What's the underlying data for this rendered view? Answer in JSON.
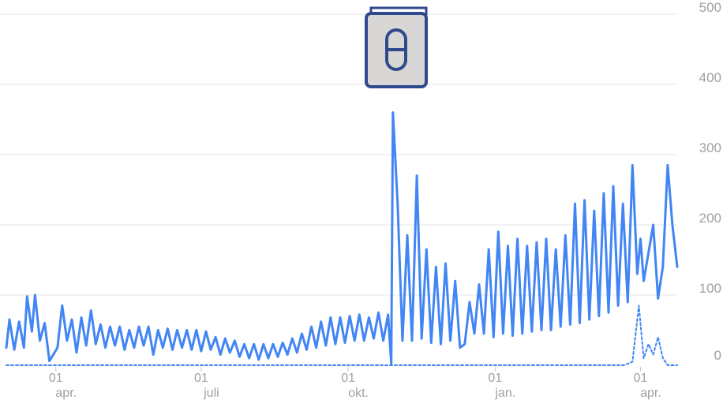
{
  "icon": {
    "name": "book-pill-icon",
    "frame_color": "#2f4a8c",
    "fill_color": "#d9d6d6"
  },
  "colors": {
    "line": "#4285f4",
    "grid": "#e6e6e6",
    "tick_text": "#a0a0a0"
  },
  "chart_data": {
    "type": "line",
    "title": "",
    "xlabel": "",
    "ylabel": "",
    "ylim": [
      0,
      500
    ],
    "yticks": [
      0,
      100,
      200,
      300,
      400,
      500
    ],
    "grid": true,
    "legend": "none",
    "xticks": [
      {
        "day": "01",
        "month": "apr.",
        "x": "2023-04-01"
      },
      {
        "day": "01",
        "month": "juli",
        "x": "2023-07-01"
      },
      {
        "day": "01",
        "month": "okt.",
        "x": "2023-10-01"
      },
      {
        "day": "01",
        "month": "jan.",
        "x": "2024-01-01"
      },
      {
        "day": "01",
        "month": "apr.",
        "x": "2024-04-01"
      }
    ],
    "x_range": [
      "2023-03-01",
      "2024-04-24"
    ],
    "series": [
      {
        "style": "solid",
        "points": [
          [
            "2023-03-01",
            25
          ],
          [
            "2023-03-03",
            65
          ],
          [
            "2023-03-06",
            22
          ],
          [
            "2023-03-09",
            62
          ],
          [
            "2023-03-12",
            25
          ],
          [
            "2023-03-14",
            98
          ],
          [
            "2023-03-17",
            48
          ],
          [
            "2023-03-19",
            100
          ],
          [
            "2023-03-22",
            35
          ],
          [
            "2023-03-25",
            60
          ],
          [
            "2023-03-28",
            6
          ],
          [
            "2023-04-02",
            25
          ],
          [
            "2023-04-05",
            85
          ],
          [
            "2023-04-08",
            35
          ],
          [
            "2023-04-11",
            65
          ],
          [
            "2023-04-14",
            18
          ],
          [
            "2023-04-17",
            68
          ],
          [
            "2023-04-20",
            28
          ],
          [
            "2023-04-23",
            78
          ],
          [
            "2023-04-26",
            30
          ],
          [
            "2023-04-29",
            58
          ],
          [
            "2023-05-02",
            25
          ],
          [
            "2023-05-05",
            55
          ],
          [
            "2023-05-08",
            28
          ],
          [
            "2023-05-11",
            55
          ],
          [
            "2023-05-14",
            22
          ],
          [
            "2023-05-17",
            50
          ],
          [
            "2023-05-20",
            25
          ],
          [
            "2023-05-23",
            55
          ],
          [
            "2023-05-26",
            28
          ],
          [
            "2023-05-29",
            55
          ],
          [
            "2023-06-01",
            15
          ],
          [
            "2023-06-04",
            50
          ],
          [
            "2023-06-07",
            25
          ],
          [
            "2023-06-10",
            52
          ],
          [
            "2023-06-13",
            22
          ],
          [
            "2023-06-16",
            50
          ],
          [
            "2023-06-19",
            25
          ],
          [
            "2023-06-22",
            50
          ],
          [
            "2023-06-25",
            22
          ],
          [
            "2023-06-28",
            50
          ],
          [
            "2023-07-01",
            20
          ],
          [
            "2023-07-04",
            48
          ],
          [
            "2023-07-07",
            22
          ],
          [
            "2023-07-10",
            40
          ],
          [
            "2023-07-13",
            15
          ],
          [
            "2023-07-16",
            38
          ],
          [
            "2023-07-19",
            18
          ],
          [
            "2023-07-22",
            35
          ],
          [
            "2023-07-25",
            12
          ],
          [
            "2023-07-28",
            30
          ],
          [
            "2023-07-31",
            10
          ],
          [
            "2023-08-03",
            30
          ],
          [
            "2023-08-06",
            8
          ],
          [
            "2023-08-09",
            30
          ],
          [
            "2023-08-12",
            10
          ],
          [
            "2023-08-15",
            30
          ],
          [
            "2023-08-18",
            12
          ],
          [
            "2023-08-21",
            32
          ],
          [
            "2023-08-24",
            15
          ],
          [
            "2023-08-27",
            38
          ],
          [
            "2023-08-30",
            18
          ],
          [
            "2023-09-02",
            45
          ],
          [
            "2023-09-05",
            22
          ],
          [
            "2023-09-08",
            55
          ],
          [
            "2023-09-11",
            25
          ],
          [
            "2023-09-14",
            62
          ],
          [
            "2023-09-17",
            28
          ],
          [
            "2023-09-20",
            68
          ],
          [
            "2023-09-23",
            30
          ],
          [
            "2023-09-26",
            68
          ],
          [
            "2023-09-29",
            32
          ],
          [
            "2023-10-02",
            70
          ],
          [
            "2023-10-05",
            35
          ],
          [
            "2023-10-08",
            72
          ],
          [
            "2023-10-11",
            35
          ],
          [
            "2023-10-14",
            68
          ],
          [
            "2023-10-17",
            38
          ],
          [
            "2023-10-20",
            75
          ],
          [
            "2023-10-23",
            35
          ],
          [
            "2023-10-26",
            72
          ],
          [
            "2023-10-28",
            2
          ],
          [
            "2023-10-29",
            360
          ],
          [
            "2023-11-01",
            230
          ],
          [
            "2023-11-04",
            35
          ],
          [
            "2023-11-07",
            185
          ],
          [
            "2023-11-10",
            35
          ],
          [
            "2023-11-13",
            270
          ],
          [
            "2023-11-16",
            38
          ],
          [
            "2023-11-19",
            165
          ],
          [
            "2023-11-22",
            32
          ],
          [
            "2023-11-25",
            140
          ],
          [
            "2023-11-28",
            30
          ],
          [
            "2023-12-01",
            145
          ],
          [
            "2023-12-04",
            35
          ],
          [
            "2023-12-07",
            120
          ],
          [
            "2023-12-10",
            25
          ],
          [
            "2023-12-13",
            30
          ],
          [
            "2023-12-16",
            90
          ],
          [
            "2023-12-19",
            45
          ],
          [
            "2023-12-22",
            115
          ],
          [
            "2023-12-25",
            45
          ],
          [
            "2023-12-28",
            165
          ],
          [
            "2023-12-31",
            40
          ],
          [
            "2024-01-03",
            190
          ],
          [
            "2024-01-06",
            45
          ],
          [
            "2024-01-09",
            170
          ],
          [
            "2024-01-12",
            42
          ],
          [
            "2024-01-15",
            180
          ],
          [
            "2024-01-18",
            45
          ],
          [
            "2024-01-21",
            170
          ],
          [
            "2024-01-24",
            48
          ],
          [
            "2024-01-27",
            175
          ],
          [
            "2024-01-30",
            50
          ],
          [
            "2024-02-02",
            180
          ],
          [
            "2024-02-05",
            50
          ],
          [
            "2024-02-08",
            165
          ],
          [
            "2024-02-11",
            55
          ],
          [
            "2024-02-14",
            185
          ],
          [
            "2024-02-17",
            58
          ],
          [
            "2024-02-20",
            230
          ],
          [
            "2024-02-23",
            60
          ],
          [
            "2024-02-26",
            235
          ],
          [
            "2024-02-29",
            65
          ],
          [
            "2024-03-03",
            220
          ],
          [
            "2024-03-06",
            70
          ],
          [
            "2024-03-09",
            245
          ],
          [
            "2024-03-12",
            75
          ],
          [
            "2024-03-15",
            255
          ],
          [
            "2024-03-18",
            85
          ],
          [
            "2024-03-21",
            230
          ],
          [
            "2024-03-24",
            90
          ],
          [
            "2024-03-27",
            285
          ],
          [
            "2024-03-30",
            130
          ],
          [
            "2024-04-01",
            180
          ],
          [
            "2024-04-03",
            120
          ],
          [
            "2024-04-06",
            160
          ],
          [
            "2024-04-09",
            200
          ],
          [
            "2024-04-12",
            95
          ],
          [
            "2024-04-15",
            140
          ],
          [
            "2024-04-18",
            285
          ],
          [
            "2024-04-21",
            200
          ],
          [
            "2024-04-24",
            140
          ]
        ]
      },
      {
        "style": "dashed",
        "points": [
          [
            "2023-03-01",
            0
          ],
          [
            "2024-03-22",
            0
          ],
          [
            "2024-03-27",
            5
          ],
          [
            "2024-03-31",
            85
          ],
          [
            "2024-04-03",
            10
          ],
          [
            "2024-04-06",
            30
          ],
          [
            "2024-04-09",
            15
          ],
          [
            "2024-04-12",
            40
          ],
          [
            "2024-04-15",
            10
          ],
          [
            "2024-04-18",
            0
          ],
          [
            "2024-04-24",
            0
          ]
        ]
      }
    ]
  }
}
